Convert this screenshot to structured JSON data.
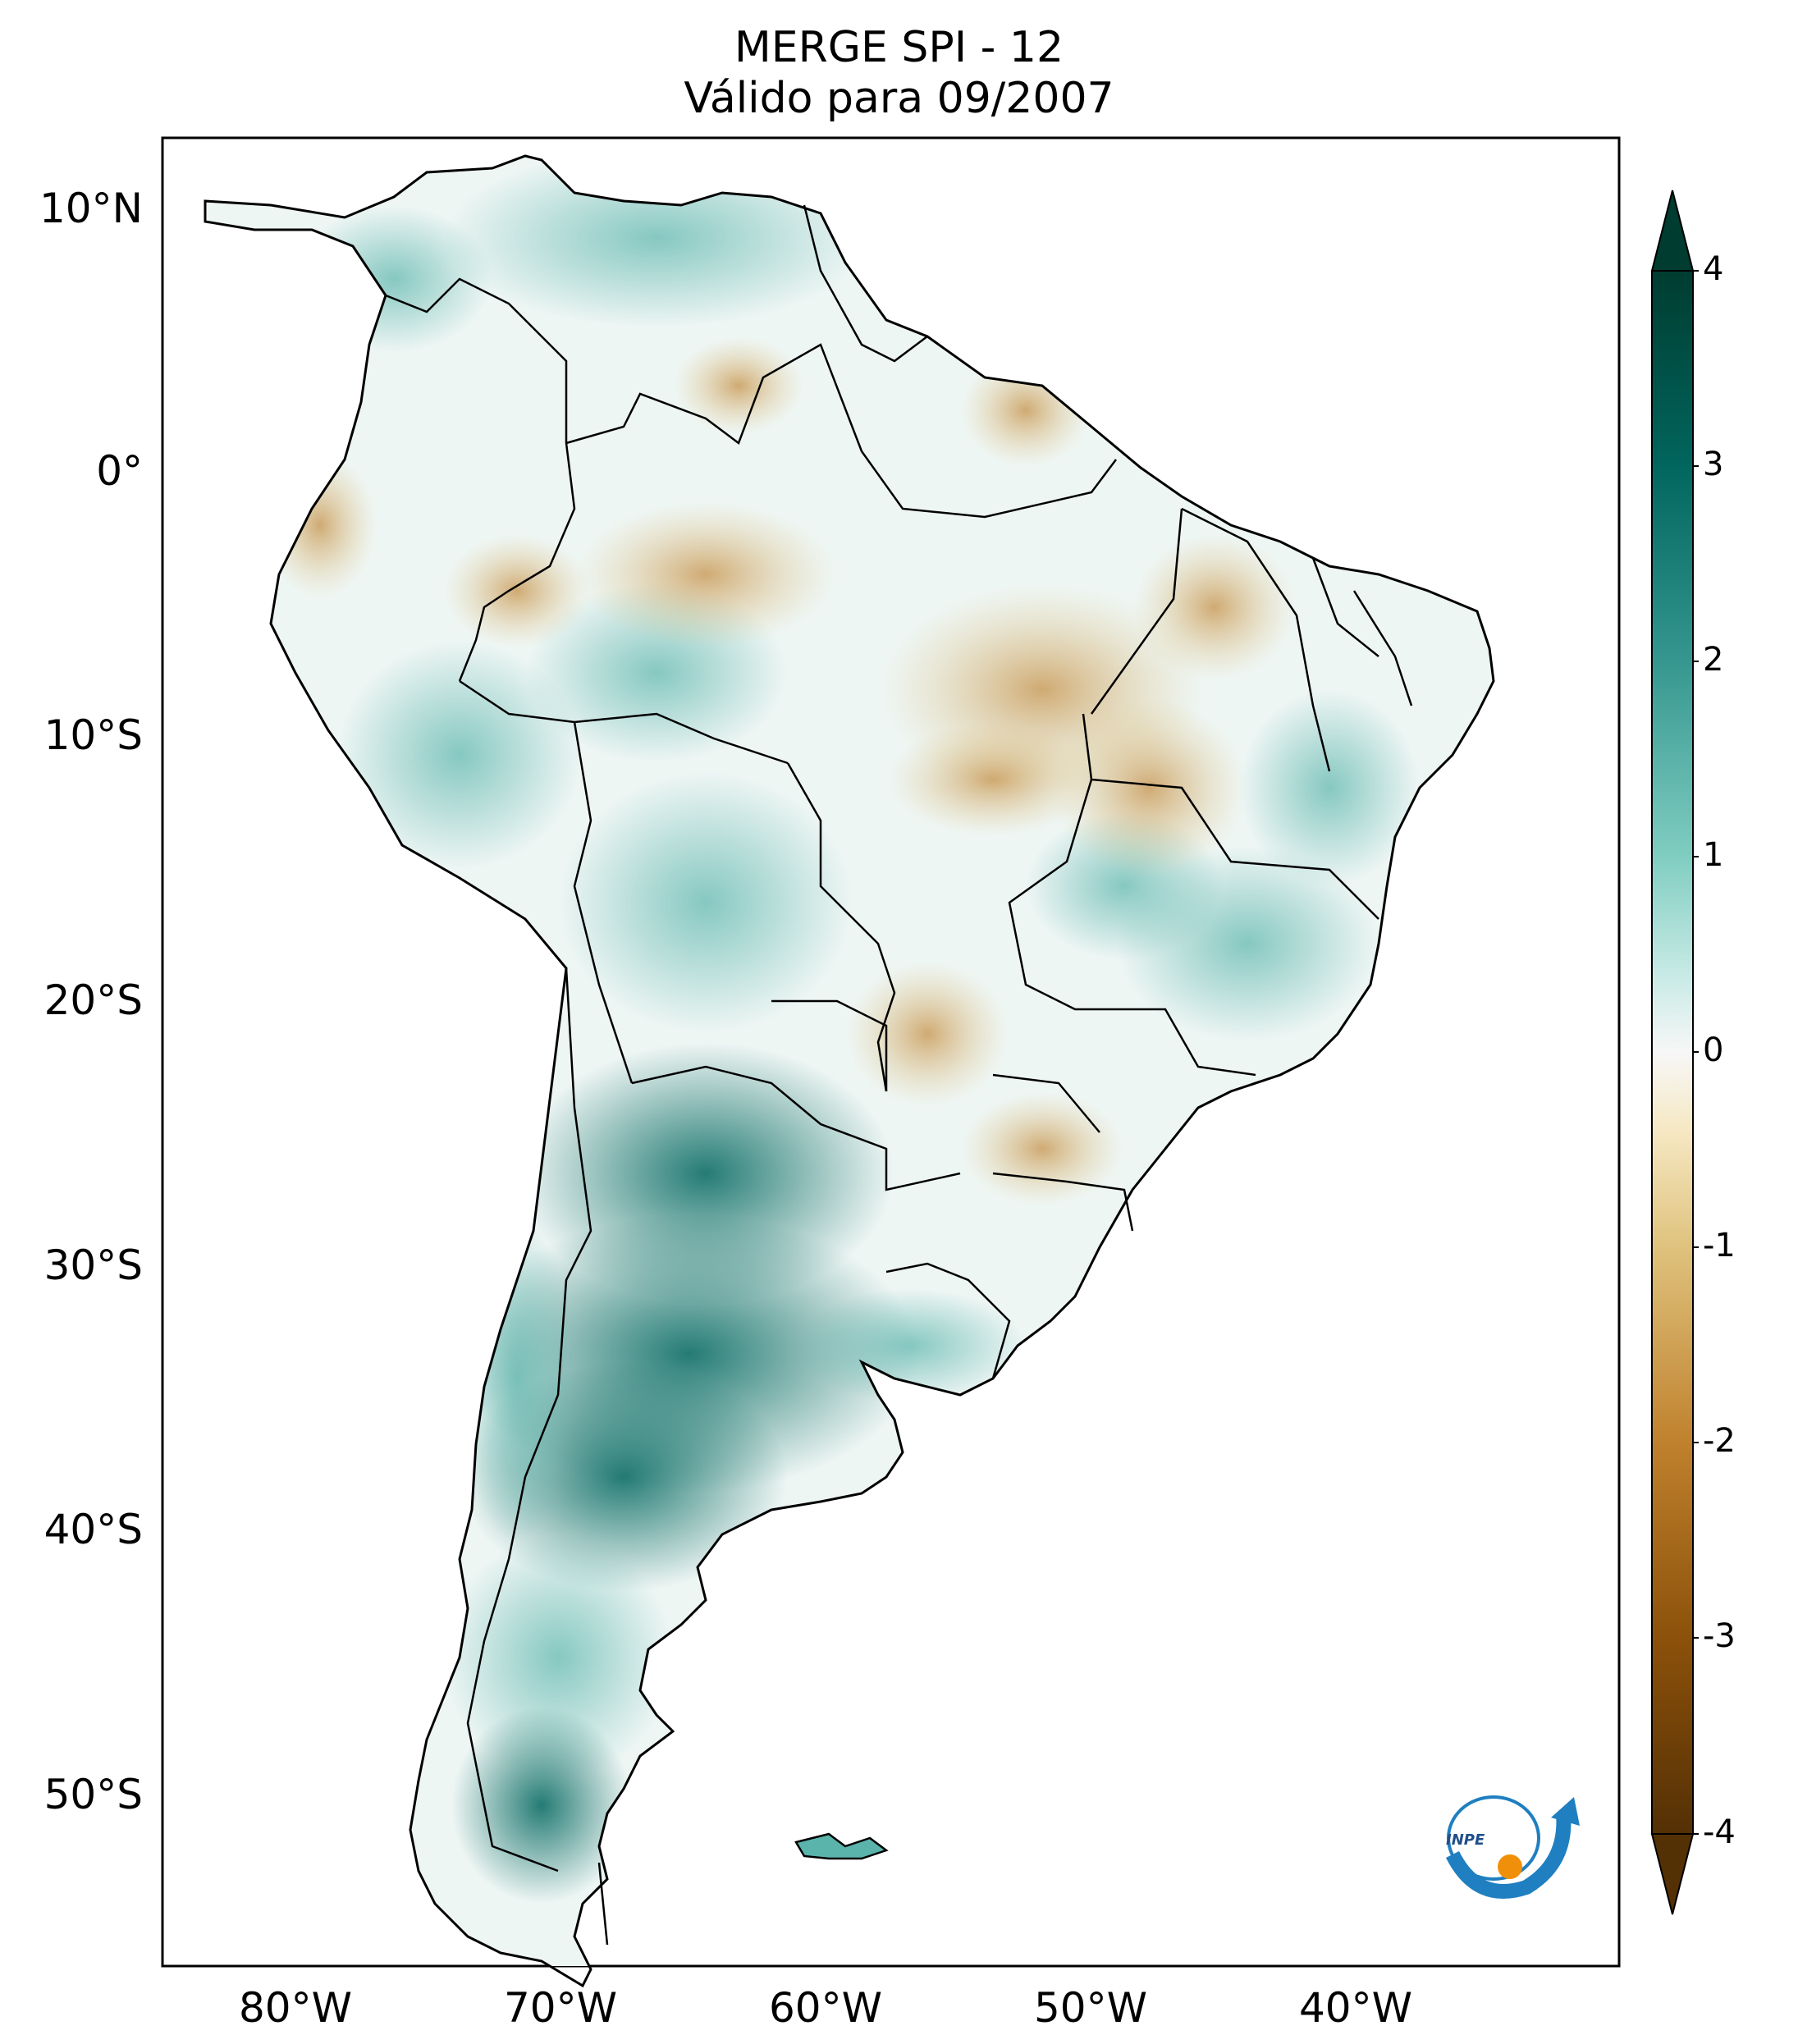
{
  "title": {
    "line1": "MERGE   SPI - 12",
    "line2": "Válido para 09/2007"
  },
  "map": {
    "region": "South America",
    "variable": "SPI - 12",
    "lat_ticks": [
      "10°N",
      "0°",
      "10°S",
      "20°S",
      "30°S",
      "40°S",
      "50°S"
    ],
    "lon_ticks": [
      "80°W",
      "70°W",
      "60°W",
      "50°W",
      "40°W"
    ],
    "extent": {
      "lon_min": -85,
      "lon_max": -30,
      "lat_min": -56,
      "lat_max": 13
    }
  },
  "colorbar": {
    "ticks": [
      "4",
      "3",
      "2",
      "1",
      "0",
      "-1",
      "-2",
      "-3",
      "-4"
    ],
    "colors": {
      "dark_wet": "#00442e",
      "wet": "#35978f",
      "light_wet": "#c7eae5",
      "neutral": "#f5f5f5",
      "light_dry": "#f6e8c3",
      "dry": "#bf812d",
      "dark_dry": "#543005"
    }
  },
  "logo": {
    "text": "INPE",
    "icon": "inpe-logo-icon"
  }
}
